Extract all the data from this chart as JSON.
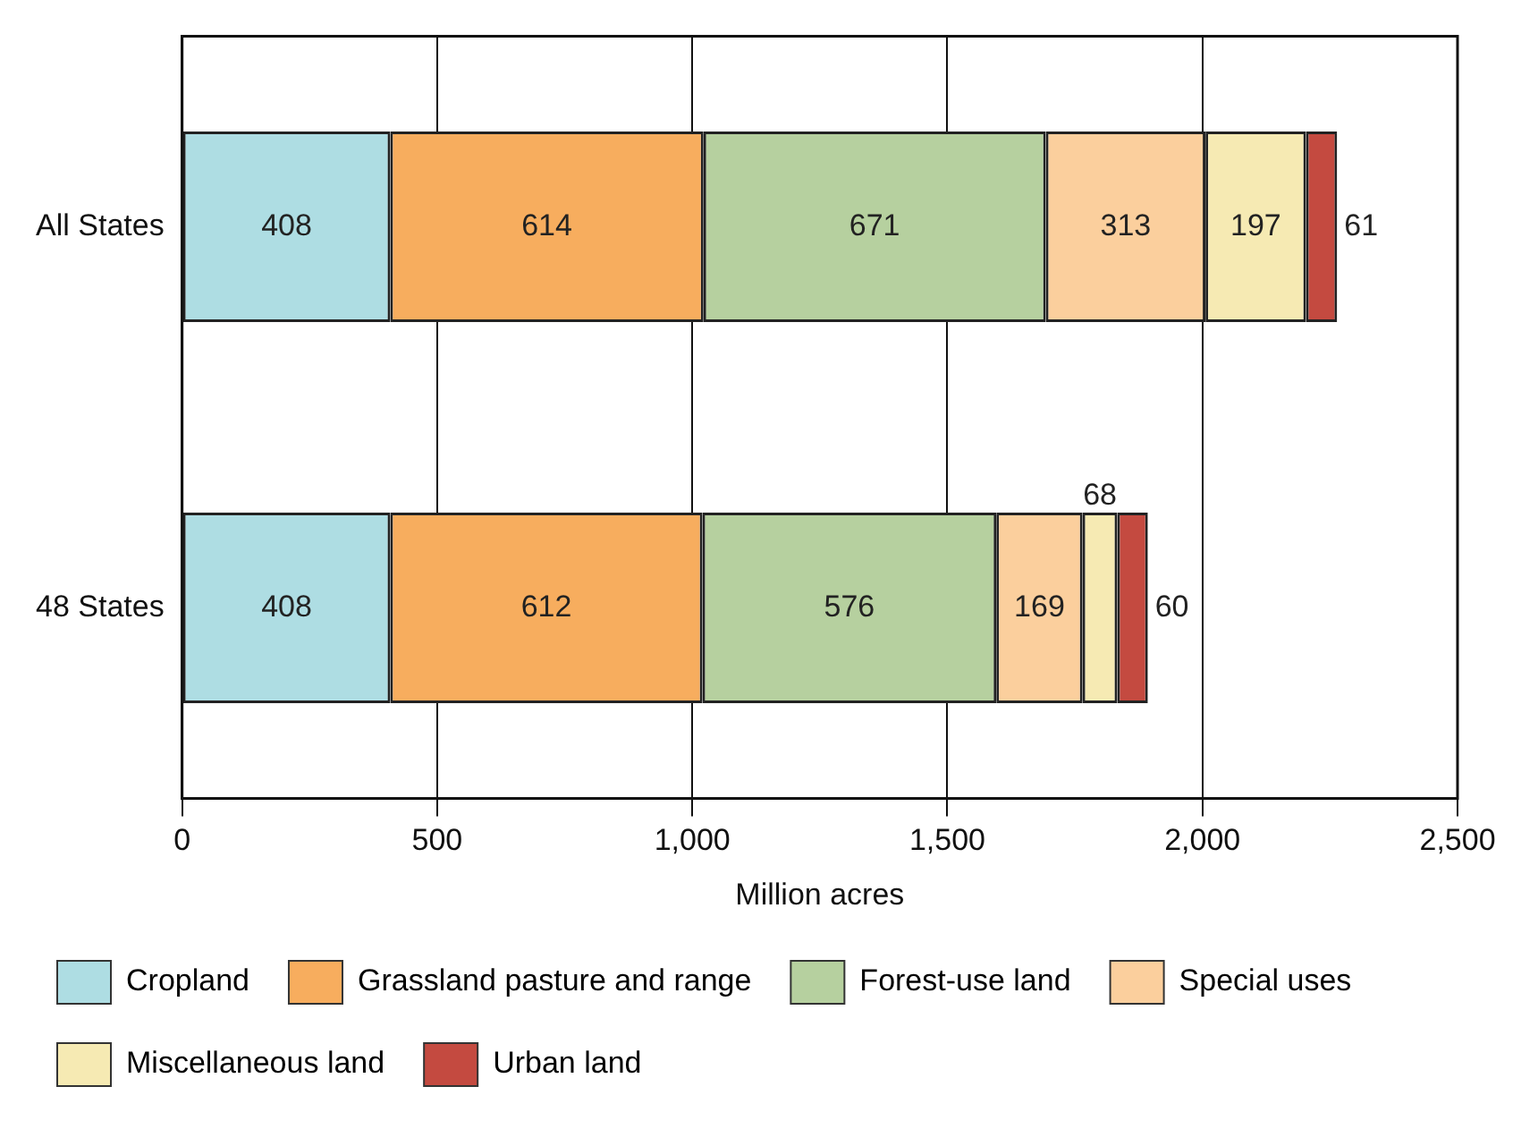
{
  "chart_data": {
    "type": "bar",
    "orientation": "horizontal",
    "stacked": true,
    "xlabel": "Million acres",
    "categories": [
      "All States",
      "48 States"
    ],
    "series": [
      {
        "name": "Cropland",
        "color": "#aedde3",
        "values": [
          408,
          408
        ]
      },
      {
        "name": "Grassland pasture and range",
        "color": "#f7ad5e",
        "values": [
          614,
          612
        ]
      },
      {
        "name": "Forest-use land",
        "color": "#b6d09f",
        "values": [
          671,
          576
        ]
      },
      {
        "name": "Special uses",
        "color": "#fbcf9d",
        "values": [
          313,
          169
        ]
      },
      {
        "name": "Miscellaneous land",
        "color": "#f6eab3",
        "values": [
          197,
          68
        ]
      },
      {
        "name": "Urban land",
        "color": "#c44a40",
        "values": [
          61,
          60
        ]
      }
    ],
    "xlim": [
      0,
      2500
    ],
    "xticks": [
      0,
      500,
      {
        "value": 1000,
        "label": "1,000"
      },
      {
        "value": 1500,
        "label": "1,500"
      },
      {
        "value": 2000,
        "label": "2,000"
      },
      {
        "value": 2500,
        "label": "2,500"
      }
    ],
    "grid": "x",
    "data_labels": true,
    "legend": "bottom"
  }
}
